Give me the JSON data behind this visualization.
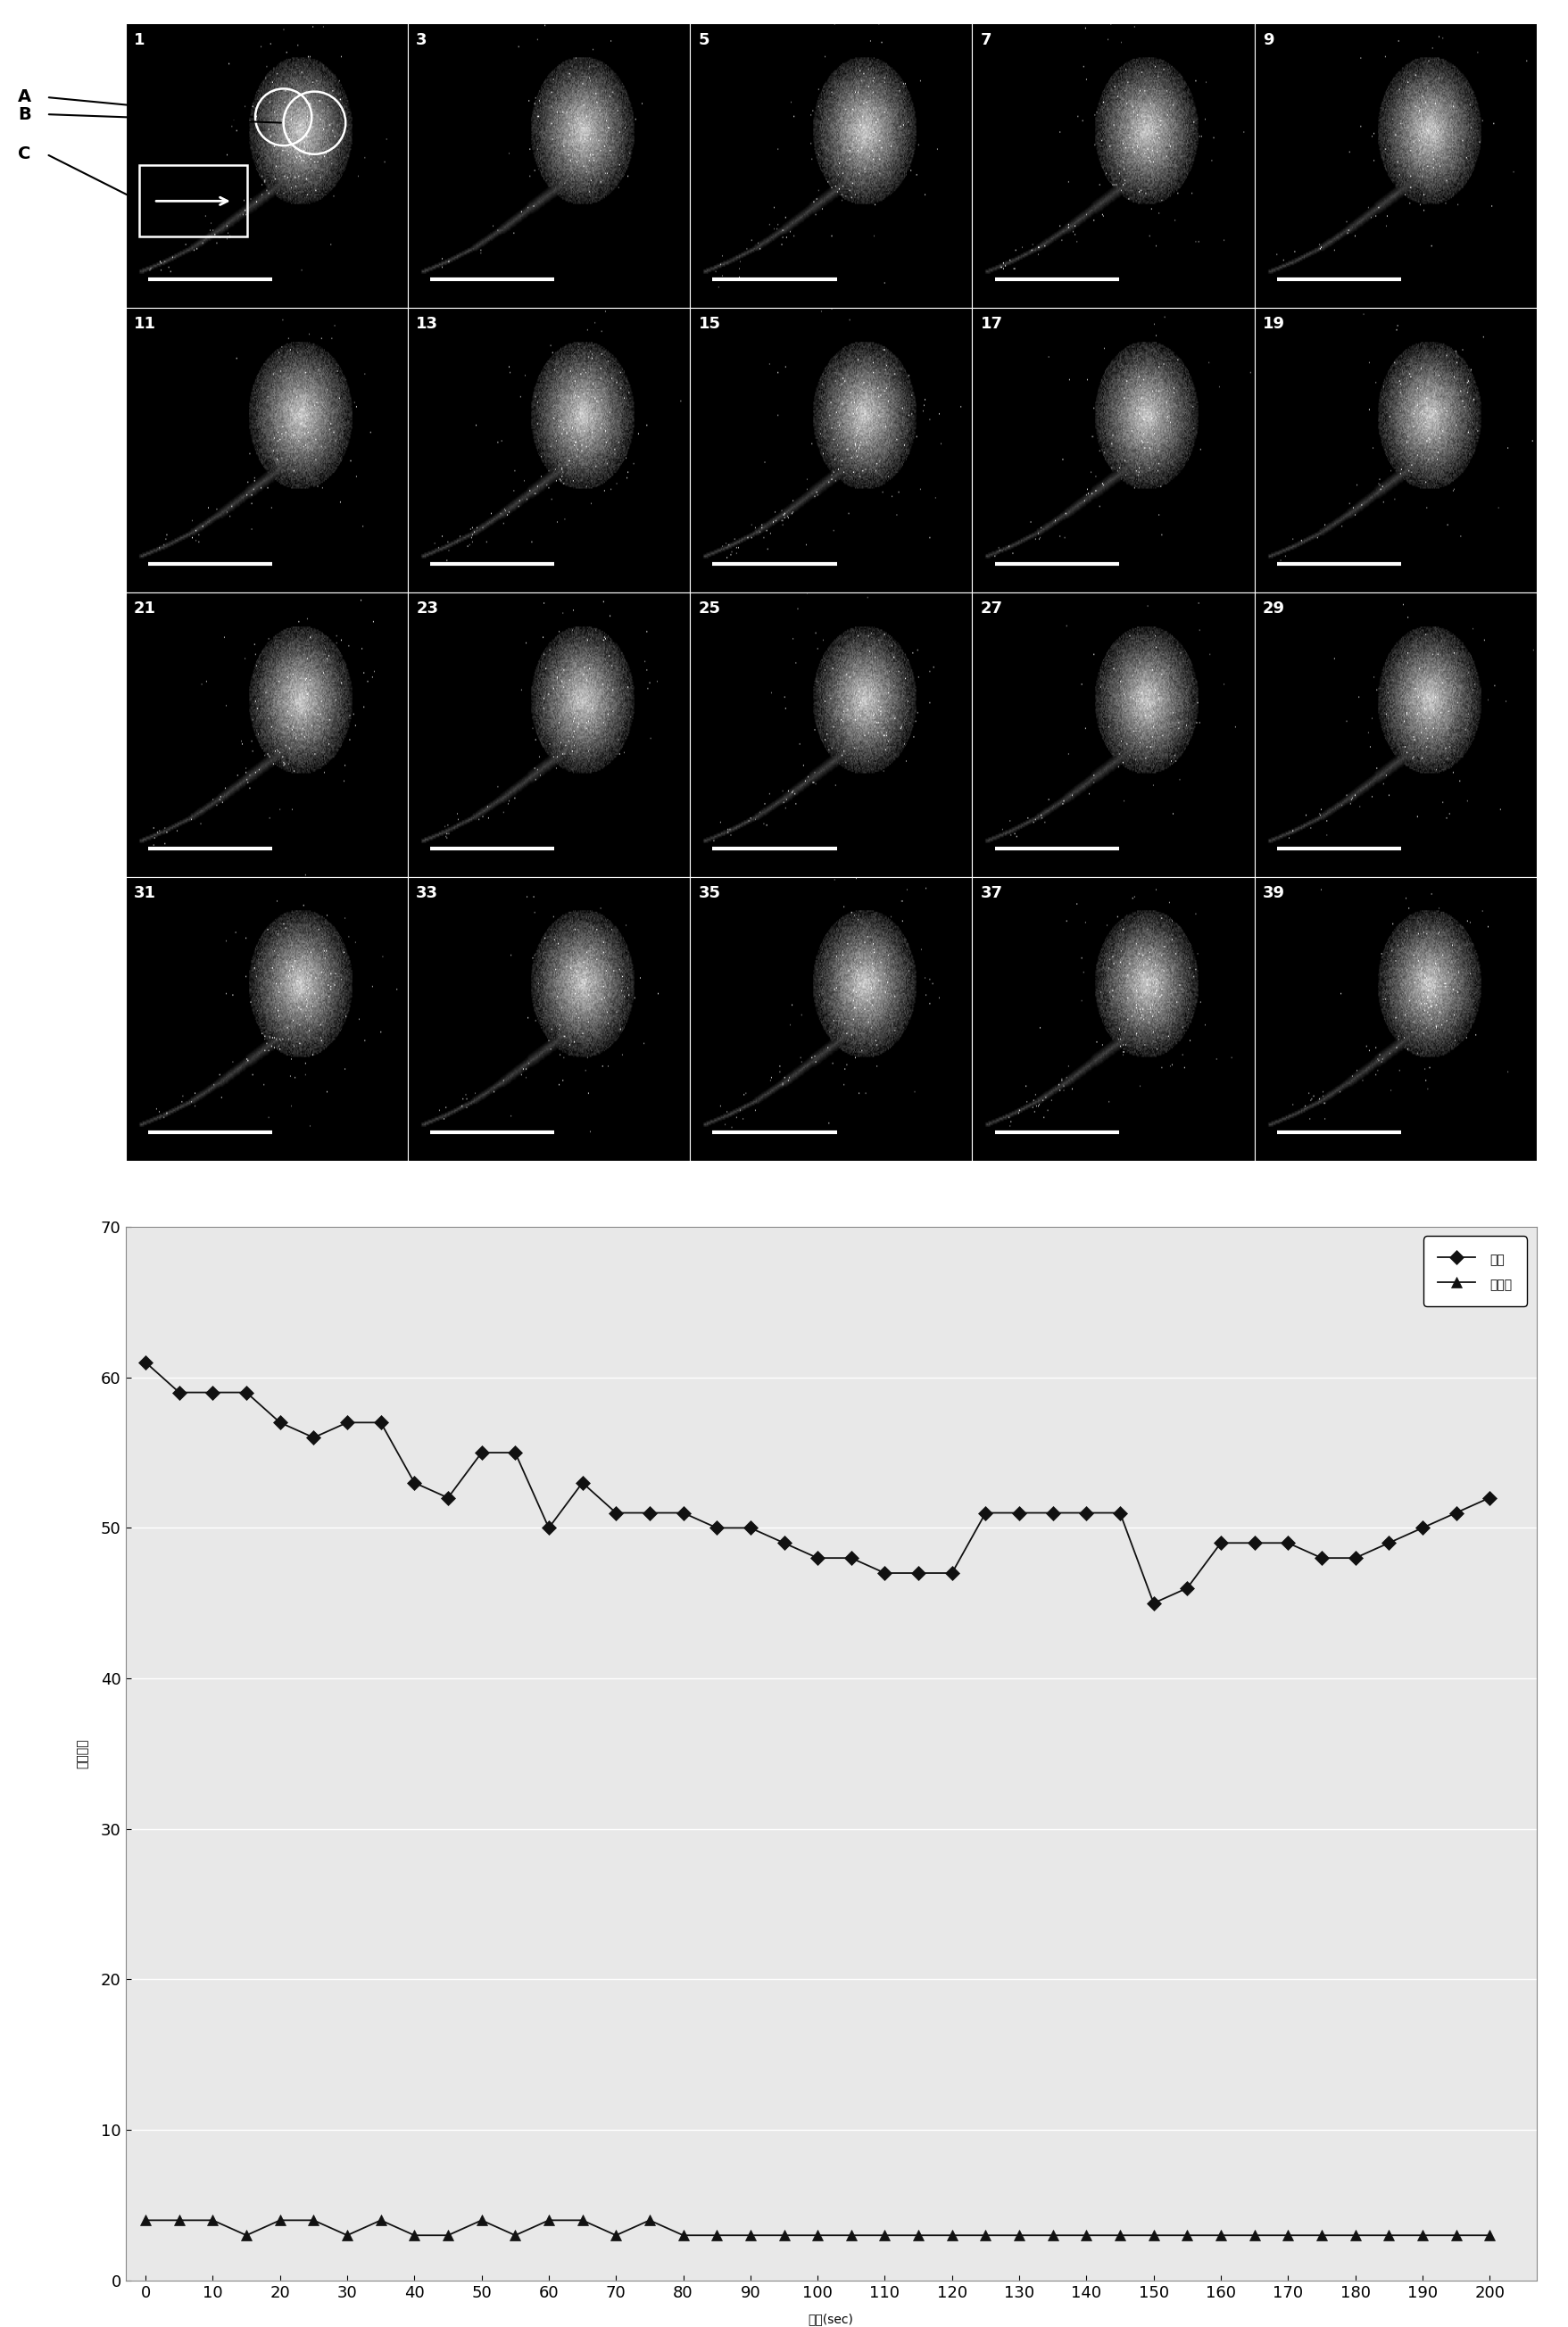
{
  "grid_labels": [
    [
      "1",
      "3",
      "5",
      "7",
      "9"
    ],
    [
      "11",
      "13",
      "15",
      "17",
      "19"
    ],
    [
      "21",
      "23",
      "25",
      "27",
      "29"
    ],
    [
      "31",
      "33",
      "35",
      "37",
      "39"
    ]
  ],
  "time_x": [
    0,
    5,
    10,
    15,
    20,
    25,
    30,
    35,
    40,
    45,
    50,
    55,
    60,
    65,
    70,
    75,
    80,
    85,
    90,
    95,
    100,
    105,
    110,
    115,
    120,
    125,
    130,
    135,
    140,
    145,
    150,
    155,
    160,
    165,
    170,
    175,
    180,
    185,
    190,
    195,
    200
  ],
  "apex_y": [
    61,
    59,
    59,
    59,
    57,
    56,
    57,
    57,
    53,
    52,
    55,
    55,
    50,
    53,
    51,
    51,
    51,
    50,
    50,
    49,
    48,
    48,
    47,
    47,
    47,
    51,
    51,
    51,
    51,
    51,
    45,
    46,
    49,
    49,
    49,
    48,
    48,
    49,
    50,
    51,
    52
  ],
  "proximal_y": [
    4,
    4,
    4,
    3,
    4,
    4,
    3,
    4,
    3,
    3,
    4,
    3,
    4,
    4,
    3,
    4,
    3,
    3,
    3,
    3,
    3,
    3,
    3,
    3,
    3,
    3,
    3,
    3,
    3,
    3,
    3,
    3,
    3,
    3,
    3,
    3,
    3,
    3,
    3,
    3,
    3
  ],
  "xlabel": "时间(sec)",
  "ylabel": "荽光强度",
  "legend_apex": "顶端",
  "legend_proximal": "近顶端",
  "ylim": [
    0,
    70
  ],
  "yticks": [
    0,
    10,
    20,
    30,
    40,
    50,
    60,
    70
  ],
  "xticks": [
    0,
    10,
    20,
    30,
    40,
    50,
    60,
    70,
    80,
    90,
    100,
    110,
    120,
    130,
    140,
    150,
    160,
    170,
    180,
    190,
    200
  ],
  "line_color": "#111111",
  "chart_bg": "#e8e8e8",
  "label_A": "A",
  "label_B": "B",
  "label_C": "C"
}
